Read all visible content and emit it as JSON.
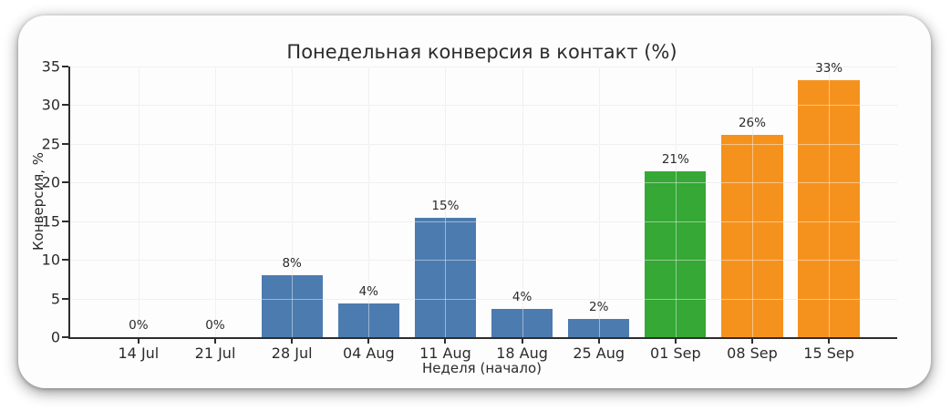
{
  "chart_data": {
    "type": "bar",
    "title": "Понедельная конверсия в контакт (%)",
    "xlabel": "Неделя (начало)",
    "ylabel": "Конверсия, %",
    "categories": [
      "14 Jul",
      "21 Jul",
      "28 Jul",
      "04 Aug",
      "11 Aug",
      "18 Aug",
      "25 Aug",
      "01 Sep",
      "08 Sep",
      "15 Sep"
    ],
    "values": [
      0,
      0,
      8.0,
      4.4,
      15.4,
      3.6,
      2.4,
      21.4,
      26.2,
      33.2
    ],
    "bar_labels": [
      "0%",
      "0%",
      "8%",
      "4%",
      "15%",
      "4%",
      "2%",
      "21%",
      "26%",
      "33%"
    ],
    "bar_colors": [
      "#4C7BAF",
      "#4C7BAF",
      "#4C7BAF",
      "#4C7BAF",
      "#4C7BAF",
      "#4C7BAF",
      "#4C7BAF",
      "#35A835",
      "#F5921E",
      "#F5921E"
    ],
    "ylim": [
      0,
      35
    ],
    "yticks": [
      0,
      5,
      10,
      15,
      20,
      25,
      30,
      35
    ],
    "grid": true,
    "legend_position": "none"
  },
  "style": {
    "bar_blue": "#4C7BAF",
    "bar_green": "#35A835",
    "bar_orange": "#F5921E",
    "text_color": "#2b2b2b",
    "spine_color": "#2d2d2d",
    "grid_color": "#e4e4e4",
    "card_background": "#fdfdfd"
  }
}
